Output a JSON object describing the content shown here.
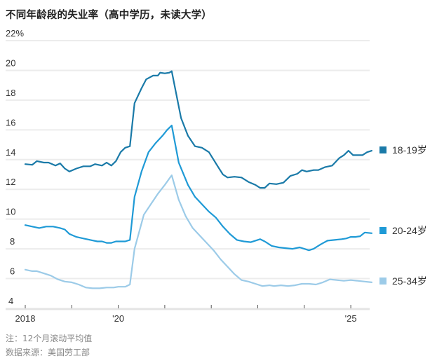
{
  "title": "不同年龄段的失业率（高中学历，未读大学）",
  "notes": {
    "line1": "注：12个月滚动平均值",
    "line2": "数据来源：美国劳工部"
  },
  "legend": [
    {
      "label": "18-19岁",
      "color": "#1a7aa8"
    },
    {
      "label": "20-24岁",
      "color": "#1f9ad6"
    },
    {
      "label": "25-34岁",
      "color": "#9ccbe8"
    }
  ],
  "chart_data": {
    "type": "line",
    "title": "不同年龄段的失业率（高中学历，未读大学）",
    "xlabel": "",
    "ylabel": "%",
    "ylim": [
      4,
      22
    ],
    "yticks": [
      4,
      6,
      8,
      10,
      12,
      14,
      16,
      18,
      20,
      22
    ],
    "ytick_labels": [
      "4",
      "6",
      "8",
      "10",
      "12",
      "14",
      "16",
      "18",
      "20",
      "22%"
    ],
    "xticks": [
      2018,
      2019,
      2020,
      2021,
      2022,
      2023,
      2024,
      2025
    ],
    "xtick_labels": [
      "2018",
      "",
      "'20",
      "",
      "",
      "",
      "",
      "'25"
    ],
    "grid": true,
    "legend_position": "right, at line ends",
    "series": [
      {
        "name": "18-19岁",
        "color": "#1a7aa8",
        "points": [
          [
            2018.0,
            13.7
          ],
          [
            2018.15,
            13.65
          ],
          [
            2018.25,
            13.9
          ],
          [
            2018.4,
            13.8
          ],
          [
            2018.5,
            13.8
          ],
          [
            2018.65,
            13.6
          ],
          [
            2018.75,
            13.75
          ],
          [
            2018.85,
            13.4
          ],
          [
            2018.95,
            13.2
          ],
          [
            2019.1,
            13.4
          ],
          [
            2019.25,
            13.55
          ],
          [
            2019.4,
            13.55
          ],
          [
            2019.5,
            13.7
          ],
          [
            2019.65,
            13.6
          ],
          [
            2019.75,
            13.8
          ],
          [
            2019.85,
            13.6
          ],
          [
            2019.95,
            13.9
          ],
          [
            2020.05,
            14.5
          ],
          [
            2020.15,
            14.8
          ],
          [
            2020.25,
            14.9
          ],
          [
            2020.35,
            17.8
          ],
          [
            2020.5,
            18.8
          ],
          [
            2020.6,
            19.4
          ],
          [
            2020.75,
            19.65
          ],
          [
            2020.85,
            19.65
          ],
          [
            2020.9,
            19.85
          ],
          [
            2021.0,
            19.8
          ],
          [
            2021.1,
            19.85
          ],
          [
            2021.15,
            19.95
          ],
          [
            2021.35,
            16.8
          ],
          [
            2021.5,
            15.6
          ],
          [
            2021.65,
            14.9
          ],
          [
            2021.8,
            14.8
          ],
          [
            2021.95,
            14.5
          ],
          [
            2022.05,
            14.0
          ],
          [
            2022.15,
            13.5
          ],
          [
            2022.25,
            13.0
          ],
          [
            2022.35,
            12.8
          ],
          [
            2022.5,
            12.85
          ],
          [
            2022.65,
            12.8
          ],
          [
            2022.8,
            12.5
          ],
          [
            2022.95,
            12.3
          ],
          [
            2023.05,
            12.1
          ],
          [
            2023.15,
            12.1
          ],
          [
            2023.25,
            12.4
          ],
          [
            2023.4,
            12.35
          ],
          [
            2023.55,
            12.45
          ],
          [
            2023.7,
            12.9
          ],
          [
            2023.85,
            13.05
          ],
          [
            2023.95,
            13.3
          ],
          [
            2024.05,
            13.2
          ],
          [
            2024.2,
            13.3
          ],
          [
            2024.3,
            13.3
          ],
          [
            2024.45,
            13.5
          ],
          [
            2024.6,
            13.6
          ],
          [
            2024.75,
            14.1
          ],
          [
            2024.85,
            14.3
          ],
          [
            2024.95,
            14.6
          ],
          [
            2025.05,
            14.3
          ],
          [
            2025.15,
            14.3
          ],
          [
            2025.25,
            14.3
          ],
          [
            2025.35,
            14.5
          ],
          [
            2025.45,
            14.6
          ]
        ]
      },
      {
        "name": "20-24岁",
        "color": "#1f9ad6",
        "points": [
          [
            2018.0,
            9.6
          ],
          [
            2018.15,
            9.5
          ],
          [
            2018.3,
            9.4
          ],
          [
            2018.45,
            9.5
          ],
          [
            2018.6,
            9.5
          ],
          [
            2018.75,
            9.4
          ],
          [
            2018.85,
            9.3
          ],
          [
            2018.95,
            9.0
          ],
          [
            2019.1,
            8.8
          ],
          [
            2019.25,
            8.7
          ],
          [
            2019.4,
            8.6
          ],
          [
            2019.55,
            8.5
          ],
          [
            2019.65,
            8.5
          ],
          [
            2019.75,
            8.4
          ],
          [
            2019.85,
            8.4
          ],
          [
            2019.95,
            8.5
          ],
          [
            2020.05,
            8.5
          ],
          [
            2020.15,
            8.5
          ],
          [
            2020.25,
            8.6
          ],
          [
            2020.35,
            11.5
          ],
          [
            2020.5,
            13.2
          ],
          [
            2020.65,
            14.5
          ],
          [
            2020.8,
            15.1
          ],
          [
            2020.95,
            15.6
          ],
          [
            2021.05,
            16.0
          ],
          [
            2021.15,
            16.3
          ],
          [
            2021.3,
            13.8
          ],
          [
            2021.5,
            12.3
          ],
          [
            2021.65,
            11.5
          ],
          [
            2021.8,
            11.0
          ],
          [
            2021.95,
            10.5
          ],
          [
            2022.1,
            10.1
          ],
          [
            2022.25,
            9.5
          ],
          [
            2022.4,
            9.0
          ],
          [
            2022.55,
            8.6
          ],
          [
            2022.7,
            8.5
          ],
          [
            2022.85,
            8.45
          ],
          [
            2022.95,
            8.55
          ],
          [
            2023.05,
            8.65
          ],
          [
            2023.15,
            8.5
          ],
          [
            2023.3,
            8.2
          ],
          [
            2023.45,
            8.1
          ],
          [
            2023.6,
            8.05
          ],
          [
            2023.75,
            8.0
          ],
          [
            2023.9,
            8.1
          ],
          [
            2024.0,
            8.0
          ],
          [
            2024.1,
            7.9
          ],
          [
            2024.2,
            8.0
          ],
          [
            2024.35,
            8.3
          ],
          [
            2024.5,
            8.55
          ],
          [
            2024.65,
            8.6
          ],
          [
            2024.8,
            8.65
          ],
          [
            2024.9,
            8.7
          ],
          [
            2025.0,
            8.8
          ],
          [
            2025.1,
            8.8
          ],
          [
            2025.2,
            8.85
          ],
          [
            2025.3,
            9.1
          ],
          [
            2025.45,
            9.05
          ]
        ]
      },
      {
        "name": "25-34岁",
        "color": "#9ccbe8",
        "points": [
          [
            2018.0,
            6.6
          ],
          [
            2018.15,
            6.5
          ],
          [
            2018.25,
            6.5
          ],
          [
            2018.4,
            6.35
          ],
          [
            2018.55,
            6.2
          ],
          [
            2018.7,
            5.95
          ],
          [
            2018.85,
            5.8
          ],
          [
            2019.0,
            5.75
          ],
          [
            2019.15,
            5.6
          ],
          [
            2019.3,
            5.4
          ],
          [
            2019.45,
            5.35
          ],
          [
            2019.6,
            5.35
          ],
          [
            2019.75,
            5.4
          ],
          [
            2019.9,
            5.4
          ],
          [
            2020.0,
            5.45
          ],
          [
            2020.15,
            5.45
          ],
          [
            2020.25,
            5.6
          ],
          [
            2020.35,
            8.0
          ],
          [
            2020.55,
            10.3
          ],
          [
            2020.7,
            11.0
          ],
          [
            2020.85,
            11.7
          ],
          [
            2021.0,
            12.3
          ],
          [
            2021.15,
            12.95
          ],
          [
            2021.3,
            11.3
          ],
          [
            2021.45,
            10.2
          ],
          [
            2021.6,
            9.4
          ],
          [
            2021.75,
            8.9
          ],
          [
            2021.9,
            8.4
          ],
          [
            2022.05,
            7.9
          ],
          [
            2022.2,
            7.3
          ],
          [
            2022.35,
            6.8
          ],
          [
            2022.5,
            6.3
          ],
          [
            2022.65,
            5.9
          ],
          [
            2022.8,
            5.8
          ],
          [
            2022.95,
            5.65
          ],
          [
            2023.1,
            5.5
          ],
          [
            2023.25,
            5.55
          ],
          [
            2023.35,
            5.5
          ],
          [
            2023.5,
            5.55
          ],
          [
            2023.65,
            5.5
          ],
          [
            2023.8,
            5.55
          ],
          [
            2023.95,
            5.65
          ],
          [
            2024.1,
            5.65
          ],
          [
            2024.25,
            5.6
          ],
          [
            2024.4,
            5.75
          ],
          [
            2024.55,
            5.95
          ],
          [
            2024.7,
            5.9
          ],
          [
            2024.85,
            5.85
          ],
          [
            2025.0,
            5.9
          ],
          [
            2025.15,
            5.85
          ],
          [
            2025.3,
            5.8
          ],
          [
            2025.45,
            5.75
          ]
        ]
      }
    ]
  }
}
